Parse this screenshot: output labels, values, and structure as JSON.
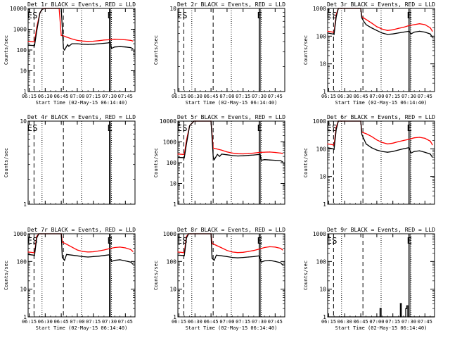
{
  "chart_data": [
    {
      "type": "line",
      "title": "Det 1r BLACK = Events, RED = LLD",
      "xlabel": "Start Time (02-May-15 06:14:40)",
      "ylabel": "Counts/sec",
      "yscale": "log",
      "ylim": [
        1,
        10000
      ],
      "yticks": [
        "1",
        "10",
        "100",
        "1000",
        "10000"
      ],
      "xlim": [
        "06:14",
        "07:54"
      ],
      "xticks": [
        "06:15",
        "06:30",
        "06:45",
        "07:00",
        "07:15",
        "07:30",
        "07:45"
      ],
      "markers": [
        "E",
        "S",
        "E"
      ],
      "series": [
        {
          "color": "#ff0000",
          "x": [
            "06:14",
            "06:19",
            "06:20",
            "06:22",
            "06:25",
            "06:27",
            "06:29",
            "06:30",
            "06:31",
            "06:33",
            "06:36",
            "06:40",
            "06:43",
            "06:45",
            "06:47",
            "06:50",
            "06:55",
            "07:00",
            "07:05",
            "07:10",
            "07:15",
            "07:20",
            "07:25",
            "07:29",
            "07:31",
            "07:35",
            "07:40",
            "07:45",
            "07:50",
            "07:52"
          ],
          "values": [
            260,
            250,
            240,
            1200,
            6000,
            9000,
            10000,
            10000,
            10000,
            10000,
            10000,
            10000,
            10000,
            500,
            480,
            420,
            340,
            290,
            270,
            260,
            265,
            280,
            300,
            310,
            320,
            330,
            320,
            310,
            290,
            270
          ]
        },
        {
          "color": "#000000",
          "x": [
            "06:14",
            "06:19",
            "06:20",
            "06:22",
            "06:25",
            "06:27",
            "06:30",
            "06:45",
            "06:47",
            "06:48",
            "06:51",
            "06:52",
            "06:55",
            "07:00",
            "07:05",
            "07:10",
            "07:15",
            "07:20",
            "07:25",
            "07:29",
            "07:31",
            "07:32",
            "07:35",
            "07:40",
            "07:45",
            "07:50",
            "07:52"
          ],
          "values": [
            170,
            165,
            160,
            800,
            6000,
            9000,
            10000,
            10000,
            120,
            100,
            180,
            150,
            200,
            200,
            190,
            185,
            190,
            200,
            210,
            220,
            235,
            120,
            140,
            145,
            140,
            130,
            115
          ]
        }
      ]
    },
    {
      "type": "line",
      "title": "Det 2r BLACK = Events, RED = LLD",
      "xlabel": "Start Time (02-May-15 06:14:40)",
      "ylabel": "Counts/sec",
      "yscale": "log",
      "ylim": [
        1,
        10
      ],
      "yticks": [
        "1",
        "10"
      ],
      "xlim": [
        "06:14",
        "07:54"
      ],
      "xticks": [
        "06:15",
        "06:30",
        "06:45",
        "07:00",
        "07:15",
        "07:30",
        "07:45"
      ],
      "markers": [
        "E",
        "S",
        "E"
      ],
      "series": []
    },
    {
      "type": "line",
      "title": "Det 3r BLACK = Events, RED = LLD",
      "xlabel": "Start Time (02-May-15 06:14:40)",
      "ylabel": "Counts/sec",
      "yscale": "log",
      "ylim": [
        1,
        1000
      ],
      "yticks": [
        "1",
        "10",
        "100",
        "1000"
      ],
      "xlim": [
        "06:14",
        "07:54"
      ],
      "xticks": [
        "06:15",
        "06:30",
        "06:45",
        "07:00",
        "07:15",
        "07:30",
        "07:45"
      ],
      "markers": [
        "E",
        "S",
        "E"
      ],
      "series": [
        {
          "color": "#ff0000",
          "x": [
            "06:14",
            "06:19",
            "06:20",
            "06:22",
            "06:24",
            "06:26",
            "06:30",
            "06:45",
            "06:46",
            "06:50",
            "06:55",
            "07:00",
            "07:05",
            "07:10",
            "07:15",
            "07:20",
            "07:25",
            "07:30",
            "07:35",
            "07:40",
            "07:45",
            "07:50",
            "07:52"
          ],
          "values": [
            150,
            140,
            135,
            600,
            1000,
            1000,
            1000,
            1000,
            500,
            400,
            300,
            220,
            180,
            160,
            170,
            190,
            210,
            240,
            260,
            280,
            260,
            200,
            150
          ]
        },
        {
          "color": "#000000",
          "x": [
            "06:14",
            "06:19",
            "06:20",
            "06:22",
            "06:24",
            "06:26",
            "06:30",
            "06:45",
            "06:46",
            "06:48",
            "06:50",
            "06:55",
            "07:00",
            "07:05",
            "07:10",
            "07:15",
            "07:20",
            "07:25",
            "07:30",
            "07:32",
            "07:35",
            "07:40",
            "07:45",
            "07:50",
            "07:52"
          ],
          "values": [
            130,
            120,
            115,
            500,
            1000,
            1000,
            1000,
            1000,
            450,
            330,
            260,
            200,
            160,
            130,
            115,
            120,
            130,
            140,
            150,
            120,
            140,
            150,
            140,
            120,
            90
          ]
        }
      ]
    },
    {
      "type": "line",
      "title": "Det 4r BLACK = Events, RED = LLD",
      "xlabel": "",
      "ylabel": "Counts/sec",
      "yscale": "log",
      "ylim": [
        1,
        10
      ],
      "yticks": [
        "1",
        "10"
      ],
      "xlim": [
        "06:14",
        "07:54"
      ],
      "xticks": [],
      "markers": [
        "E",
        "S",
        "E"
      ],
      "series": []
    },
    {
      "type": "line",
      "title": "Det 5r BLACK = Events, RED = LLD",
      "xlabel": "",
      "ylabel": "Counts/sec",
      "yscale": "log",
      "ylim": [
        1,
        10000
      ],
      "yticks": [
        "1",
        "10",
        "100",
        "1000",
        "10000"
      ],
      "xlim": [
        "06:14",
        "07:54"
      ],
      "xticks": [],
      "markers": [
        "E",
        "S",
        "E"
      ],
      "series": [
        {
          "color": "#ff0000",
          "x": [
            "06:14",
            "06:19",
            "06:20",
            "06:22",
            "06:25",
            "06:29",
            "06:31",
            "06:45",
            "06:47",
            "06:50",
            "06:55",
            "07:00",
            "07:05",
            "07:10",
            "07:15",
            "07:20",
            "07:25",
            "07:30",
            "07:35",
            "07:40",
            "07:45",
            "07:50",
            "07:52"
          ],
          "values": [
            260,
            250,
            240,
            1200,
            6000,
            10000,
            10000,
            10000,
            500,
            460,
            400,
            330,
            290,
            270,
            265,
            275,
            290,
            310,
            320,
            325,
            310,
            290,
            280
          ]
        },
        {
          "color": "#000000",
          "x": [
            "06:14",
            "06:19",
            "06:20",
            "06:22",
            "06:25",
            "06:29",
            "06:31",
            "06:45",
            "06:47",
            "06:48",
            "06:51",
            "06:53",
            "06:55",
            "07:00",
            "07:05",
            "07:10",
            "07:15",
            "07:20",
            "07:25",
            "07:29",
            "07:31",
            "07:32",
            "07:35",
            "07:40",
            "07:45",
            "07:50",
            "07:52"
          ],
          "values": [
            180,
            175,
            170,
            800,
            6000,
            10000,
            10000,
            10000,
            200,
            140,
            250,
            200,
            260,
            240,
            220,
            210,
            215,
            225,
            235,
            245,
            250,
            130,
            140,
            135,
            130,
            125,
            110
          ]
        }
      ]
    },
    {
      "type": "line",
      "title": "Det 6r BLACK = Events, RED = LLD",
      "xlabel": "",
      "ylabel": "Counts/sec",
      "yscale": "log",
      "ylim": [
        1,
        1000
      ],
      "yticks": [
        "1",
        "10",
        "100",
        "1000"
      ],
      "xlim": [
        "06:14",
        "07:54"
      ],
      "xticks": [],
      "markers": [
        "E",
        "S",
        "E"
      ],
      "series": [
        {
          "color": "#ff0000",
          "x": [
            "06:14",
            "06:19",
            "06:20",
            "06:22",
            "06:24",
            "06:26",
            "06:30",
            "06:45",
            "06:46",
            "06:50",
            "06:55",
            "07:00",
            "07:05",
            "07:10",
            "07:15",
            "07:20",
            "07:25",
            "07:30",
            "07:35",
            "07:40",
            "07:45",
            "07:50",
            "07:52"
          ],
          "values": [
            150,
            140,
            135,
            600,
            1000,
            1000,
            1000,
            1000,
            400,
            350,
            280,
            210,
            170,
            150,
            160,
            180,
            200,
            220,
            250,
            260,
            240,
            190,
            140
          ]
        },
        {
          "color": "#000000",
          "x": [
            "06:14",
            "06:19",
            "06:20",
            "06:22",
            "06:24",
            "06:26",
            "06:30",
            "06:45",
            "06:46",
            "06:48",
            "06:50",
            "06:55",
            "07:00",
            "07:05",
            "07:10",
            "07:15",
            "07:20",
            "07:25",
            "07:30",
            "07:32",
            "07:35",
            "07:40",
            "07:45",
            "07:50",
            "07:52"
          ],
          "values": [
            110,
            100,
            95,
            500,
            1000,
            1000,
            1000,
            1000,
            330,
            220,
            150,
            110,
            90,
            80,
            75,
            80,
            90,
            100,
            110,
            70,
            80,
            85,
            75,
            65,
            50
          ]
        }
      ]
    },
    {
      "type": "line",
      "title": "Det 7r BLACK = Events, RED = LLD",
      "xlabel": "Start Time (02-May-15 06:14:40)",
      "ylabel": "Counts/sec",
      "yscale": "log",
      "ylim": [
        1,
        1000
      ],
      "yticks": [
        "1",
        "10",
        "100",
        "1000"
      ],
      "xlim": [
        "06:14",
        "07:54"
      ],
      "xticks": [
        "06:15",
        "06:30",
        "06:45",
        "07:00",
        "07:15",
        "07:30",
        "07:45"
      ],
      "markers": [
        "E",
        "S",
        "E"
      ],
      "series": [
        {
          "color": "#ff0000",
          "x": [
            "06:14",
            "06:19",
            "06:20",
            "06:22",
            "06:24",
            "06:26",
            "06:30",
            "06:45",
            "06:46",
            "06:50",
            "06:55",
            "07:00",
            "07:05",
            "07:10",
            "07:15",
            "07:20",
            "07:25",
            "07:30",
            "07:35",
            "07:40",
            "07:45",
            "07:50",
            "07:52"
          ],
          "values": [
            220,
            210,
            200,
            800,
            1000,
            1000,
            1000,
            1000,
            500,
            420,
            330,
            260,
            230,
            220,
            225,
            240,
            260,
            290,
            320,
            330,
            310,
            270,
            230
          ]
        },
        {
          "color": "#000000",
          "x": [
            "06:14",
            "06:19",
            "06:20",
            "06:22",
            "06:24",
            "06:26",
            "06:30",
            "06:45",
            "06:46",
            "06:48",
            "06:50",
            "06:55",
            "07:00",
            "07:05",
            "07:10",
            "07:15",
            "07:20",
            "07:25",
            "07:30",
            "07:32",
            "07:35",
            "07:40",
            "07:45",
            "07:50",
            "07:52"
          ],
          "values": [
            180,
            170,
            165,
            700,
            1000,
            1000,
            1000,
            1000,
            140,
            110,
            180,
            170,
            160,
            150,
            145,
            150,
            155,
            165,
            175,
            100,
            110,
            115,
            105,
            95,
            80
          ]
        }
      ]
    },
    {
      "type": "line",
      "title": "Det 8r BLACK = Events, RED = LLD",
      "xlabel": "Start Time (02-May-15 06:14:40)",
      "ylabel": "Counts/sec",
      "yscale": "log",
      "ylim": [
        1,
        1000
      ],
      "yticks": [
        "1",
        "10",
        "100",
        "1000"
      ],
      "xlim": [
        "06:14",
        "07:54"
      ],
      "xticks": [
        "06:15",
        "06:30",
        "06:45",
        "07:00",
        "07:15",
        "07:30",
        "07:45"
      ],
      "markers": [
        "E",
        "S",
        "E"
      ],
      "series": [
        {
          "color": "#ff0000",
          "x": [
            "06:14",
            "06:19",
            "06:20",
            "06:22",
            "06:24",
            "06:26",
            "06:30",
            "06:45",
            "06:46",
            "06:50",
            "06:55",
            "07:00",
            "07:05",
            "07:10",
            "07:15",
            "07:20",
            "07:25",
            "07:30",
            "07:35",
            "07:40",
            "07:45",
            "07:50",
            "07:52"
          ],
          "values": [
            220,
            210,
            205,
            800,
            1000,
            1000,
            1000,
            1000,
            450,
            380,
            310,
            250,
            220,
            210,
            215,
            230,
            250,
            280,
            320,
            340,
            330,
            300,
            260
          ]
        },
        {
          "color": "#000000",
          "x": [
            "06:14",
            "06:19",
            "06:20",
            "06:22",
            "06:24",
            "06:26",
            "06:30",
            "06:45",
            "06:46",
            "06:48",
            "06:50",
            "06:55",
            "07:00",
            "07:05",
            "07:10",
            "07:15",
            "07:20",
            "07:25",
            "07:30",
            "07:32",
            "07:35",
            "07:40",
            "07:45",
            "07:50",
            "07:52"
          ],
          "values": [
            170,
            165,
            160,
            700,
            1000,
            1000,
            1000,
            1000,
            130,
            110,
            170,
            160,
            150,
            140,
            135,
            140,
            145,
            150,
            160,
            95,
            105,
            110,
            100,
            90,
            75
          ]
        }
      ]
    },
    {
      "type": "line",
      "title": "Det 9r BLACK = Events, RED = LLD",
      "xlabel": "Start Time (02-May-15 06:14:40)",
      "ylabel": "Counts/sec",
      "yscale": "log",
      "ylim": [
        1,
        1000
      ],
      "yticks": [
        "1",
        "10",
        "100",
        "1000"
      ],
      "xlim": [
        "06:14",
        "07:54"
      ],
      "xticks": [
        "06:15",
        "06:30",
        "06:45",
        "07:00",
        "07:15",
        "07:30",
        "07:45"
      ],
      "markers": [
        "E",
        "S",
        "E"
      ],
      "series": [
        {
          "color": "#000000",
          "x": [
            "06:14",
            "07:03",
            "07:03",
            "07:04",
            "07:04",
            "07:05",
            "07:05",
            "07:22",
            "07:22",
            "07:23",
            "07:23",
            "07:27",
            "07:27",
            "07:28",
            "07:28",
            "07:29",
            "07:29",
            "07:54"
          ],
          "values": [
            1,
            1,
            2,
            2,
            1,
            1,
            1,
            1,
            3,
            3,
            1,
            1,
            2,
            2,
            2.5,
            2.5,
            1,
            1
          ]
        }
      ]
    }
  ]
}
